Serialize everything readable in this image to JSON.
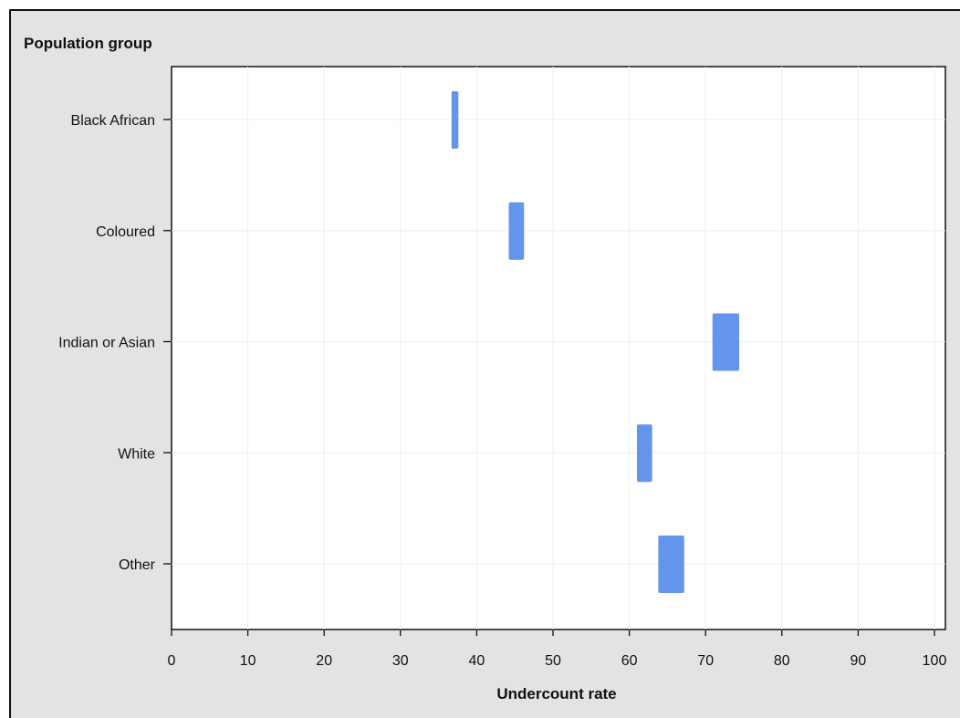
{
  "chart_data": {
    "type": "bar",
    "subtype": "floating-range",
    "ylabel": "Population group",
    "xlabel": "Undercount rate",
    "categories": [
      "Black African",
      "Coloured",
      "Indian or Asian",
      "White",
      "Other"
    ],
    "ranges": [
      {
        "category": "Black African",
        "low": 36.7,
        "high": 37.6
      },
      {
        "category": "Coloured",
        "low": 44.2,
        "high": 46.2
      },
      {
        "category": "Indian or Asian",
        "low": 70.9,
        "high": 74.4
      },
      {
        "category": "White",
        "low": 61.0,
        "high": 63.0
      },
      {
        "category": "Other",
        "low": 63.8,
        "high": 67.2
      }
    ],
    "xlim": [
      0,
      100
    ],
    "xticks": [
      "0",
      "10",
      "20",
      "30",
      "40",
      "50",
      "60",
      "70",
      "80",
      "90",
      "100"
    ],
    "grid": true,
    "bar_color": "#6495ed",
    "background_color": "#e3e3e3",
    "plot_background_color": "#ffffff"
  }
}
